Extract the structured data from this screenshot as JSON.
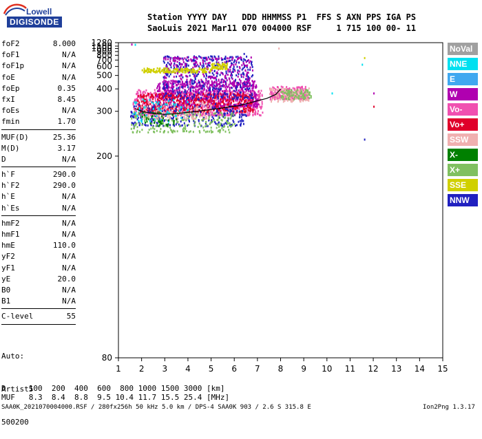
{
  "logo": {
    "brand": "Lowell",
    "product": "DIGISONDE"
  },
  "header": {
    "line1": "Station YYYY DAY   DDD HHMMSS P1  FFS S AXN PPS IGA PS",
    "line2": "SaoLuis 2021 Mar11 070 004000 RSF     1 715 100 00- 11"
  },
  "params_group1": [
    {
      "key": "foF2",
      "value": "8.000"
    },
    {
      "key": "foF1",
      "value": "N/A"
    },
    {
      "key": "foF1p",
      "value": "N/A"
    },
    {
      "key": "foE",
      "value": "N/A"
    },
    {
      "key": "foEp",
      "value": "0.35"
    },
    {
      "key": "fxI",
      "value": "8.45"
    },
    {
      "key": "foEs",
      "value": "N/A"
    },
    {
      "key": "fmin",
      "value": "1.70"
    }
  ],
  "params_group2": [
    {
      "key": "MUF(D)",
      "value": "25.36"
    },
    {
      "key": "M(D)",
      "value": "3.17"
    },
    {
      "key": "D",
      "value": "N/A"
    }
  ],
  "params_group3": [
    {
      "key": "h`F",
      "value": "290.0"
    },
    {
      "key": "h`F2",
      "value": "290.0"
    },
    {
      "key": "h`E",
      "value": "N/A"
    },
    {
      "key": "h`Es",
      "value": "N/A"
    }
  ],
  "params_group4": [
    {
      "key": "hmF2",
      "value": "N/A"
    },
    {
      "key": "hmF1",
      "value": "N/A"
    },
    {
      "key": "hmE",
      "value": "110.0"
    },
    {
      "key": "yF2",
      "value": "N/A"
    },
    {
      "key": "yF1",
      "value": "N/A"
    },
    {
      "key": "yE",
      "value": "20.0"
    },
    {
      "key": "B0",
      "value": "N/A"
    },
    {
      "key": "B1",
      "value": "N/A"
    }
  ],
  "params_group5": [
    {
      "key": "C-level",
      "value": "55"
    }
  ],
  "auto": {
    "line1": "Auto:",
    "line2": "Artist5",
    "line3": "500200"
  },
  "bottom": {
    "d_row": "D     100  200  400  600  800 1000 1500 3000 [km]",
    "muf_row": "MUF   8.3  8.4  8.8  9.5 10.4 11.7 15.5 25.4 [MHz]",
    "footer_left": "SAA0K_2021070004000.RSF / 280fx256h 50 kHz 5.0 km / DPS-4 SAA0K 903 / 2.6 S 315.8 E",
    "footer_right": "Ion2Png 1.3.17"
  },
  "legend": [
    {
      "label": "NoVal",
      "color": "#a0a0a0"
    },
    {
      "label": "NNE",
      "color": "#00e0f0"
    },
    {
      "label": "E",
      "color": "#40a8f0"
    },
    {
      "label": "W",
      "color": "#b000b0"
    },
    {
      "label": "Vo-",
      "color": "#f050b0"
    },
    {
      "label": "Vo+",
      "color": "#e0002a"
    },
    {
      "label": "SSW",
      "color": "#f0b0b0"
    },
    {
      "label": "X-",
      "color": "#008000"
    },
    {
      "label": "X+",
      "color": "#80c060"
    },
    {
      "label": "SSE",
      "color": "#d0d000"
    },
    {
      "label": "NNW",
      "color": "#2020c0"
    }
  ],
  "chart_data": {
    "type": "scatter",
    "title": "",
    "xlabel": "",
    "ylabel": "",
    "xlim": [
      1,
      15
    ],
    "ylim": [
      80,
      1280
    ],
    "x_ticks": [
      1,
      2,
      3,
      4,
      5,
      6,
      7,
      8,
      9,
      10,
      11,
      12,
      13,
      14,
      15
    ],
    "y_ticks": [
      80,
      200,
      300,
      400,
      500,
      600,
      700,
      800,
      900,
      1000,
      1100,
      1280
    ],
    "y_scale": "reciprocal",
    "grid": false,
    "trace": {
      "name": "",
      "x": [
        1.7,
        2.0,
        2.3,
        2.6,
        3.0,
        3.4,
        3.8,
        4.2,
        4.6,
        5.0,
        5.4,
        5.8,
        6.2,
        6.6,
        7.0,
        7.4,
        7.8,
        8.0
      ],
      "y": [
        310,
        300,
        295,
        292,
        290,
        292,
        295,
        298,
        302,
        306,
        310,
        316,
        320,
        330,
        340,
        350,
        370,
        400
      ]
    },
    "clusters": [
      {
        "series": "Vo-",
        "x": [
          1.6,
          7.2
        ],
        "y": [
          290,
          400
        ],
        "density": 900
      },
      {
        "series": "W",
        "x": [
          2.6,
          7.0
        ],
        "y": [
          320,
          460
        ],
        "density": 600
      },
      {
        "series": "Vo+",
        "x": [
          1.8,
          6.8
        ],
        "y": [
          300,
          380
        ],
        "density": 500
      },
      {
        "series": "NNW",
        "x": [
          1.5,
          6.5
        ],
        "y": [
          260,
          330
        ],
        "density": 260
      },
      {
        "series": "X+",
        "x": [
          1.5,
          6.0
        ],
        "y": [
          245,
          300
        ],
        "density": 220
      },
      {
        "series": "NNW",
        "x": [
          2.9,
          6.8
        ],
        "y": [
          350,
          800
        ],
        "density": 420
      },
      {
        "series": "W",
        "x": [
          2.9,
          6.8
        ],
        "y": [
          420,
          780
        ],
        "density": 260
      },
      {
        "series": "SSE",
        "x": [
          2.0,
          5.0
        ],
        "y": [
          540,
          590
        ],
        "density": 150
      },
      {
        "series": "SSE",
        "x": [
          5.0,
          5.7
        ],
        "y": [
          580,
          660
        ],
        "density": 60
      },
      {
        "series": "Vo-",
        "x": [
          7.5,
          9.2
        ],
        "y": [
          350,
          420
        ],
        "density": 260
      },
      {
        "series": "SSW",
        "x": [
          7.5,
          9.2
        ],
        "y": [
          340,
          410
        ],
        "density": 120
      },
      {
        "series": "X+",
        "x": [
          8.0,
          9.3
        ],
        "y": [
          350,
          400
        ],
        "density": 80
      },
      {
        "series": "SSW",
        "x": [
          2.0,
          5.0
        ],
        "y": [
          280,
          340
        ],
        "density": 120
      },
      {
        "series": "NNE",
        "x": [
          1.6,
          4.0
        ],
        "y": [
          270,
          350
        ],
        "density": 60
      },
      {
        "series": "X-",
        "x": [
          2.0,
          3.5
        ],
        "y": [
          260,
          300
        ],
        "density": 40
      }
    ],
    "outliers": [
      {
        "series": "W",
        "x": 1.55,
        "y": 1230
      },
      {
        "series": "NNE",
        "x": 1.7,
        "y": 1215
      },
      {
        "series": "NNW",
        "x": 6.4,
        "y": 860
      },
      {
        "series": "SSW",
        "x": 7.9,
        "y": 1040
      },
      {
        "series": "NNW",
        "x": 11.6,
        "y": 230
      },
      {
        "series": "Vo+",
        "x": 12.0,
        "y": 320
      },
      {
        "series": "NNE",
        "x": 11.5,
        "y": 640
      },
      {
        "series": "SSE",
        "x": 11.6,
        "y": 760
      },
      {
        "series": "NNE",
        "x": 10.2,
        "y": 380
      },
      {
        "series": "W",
        "x": 12.0,
        "y": 380
      }
    ]
  }
}
